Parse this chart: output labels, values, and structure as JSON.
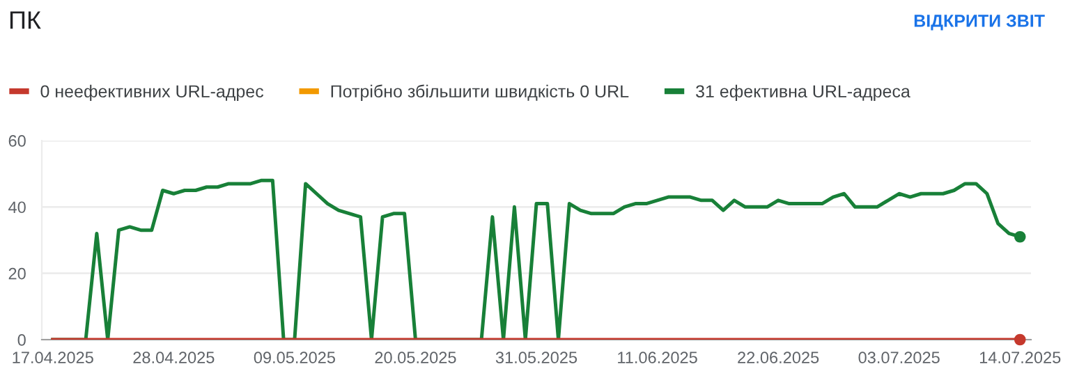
{
  "chart_data": {
    "type": "line",
    "title": "ПК",
    "annotations": [
      "ВІДКРИТИ ЗВІТ"
    ],
    "x": [
      "2025-04-17",
      "2025-04-18",
      "2025-04-19",
      "2025-04-20",
      "2025-04-21",
      "2025-04-22",
      "2025-04-23",
      "2025-04-24",
      "2025-04-25",
      "2025-04-26",
      "2025-04-27",
      "2025-04-28",
      "2025-04-29",
      "2025-04-30",
      "2025-05-01",
      "2025-05-02",
      "2025-05-03",
      "2025-05-04",
      "2025-05-05",
      "2025-05-06",
      "2025-05-07",
      "2025-05-08",
      "2025-05-09",
      "2025-05-10",
      "2025-05-11",
      "2025-05-12",
      "2025-05-13",
      "2025-05-14",
      "2025-05-15",
      "2025-05-16",
      "2025-05-17",
      "2025-05-18",
      "2025-05-19",
      "2025-05-20",
      "2025-05-21",
      "2025-05-22",
      "2025-05-23",
      "2025-05-24",
      "2025-05-25",
      "2025-05-26",
      "2025-05-27",
      "2025-05-28",
      "2025-05-29",
      "2025-05-30",
      "2025-05-31",
      "2025-06-01",
      "2025-06-02",
      "2025-06-03",
      "2025-06-04",
      "2025-06-05",
      "2025-06-06",
      "2025-06-07",
      "2025-06-08",
      "2025-06-09",
      "2025-06-10",
      "2025-06-11",
      "2025-06-12",
      "2025-06-13",
      "2025-06-14",
      "2025-06-15",
      "2025-06-16",
      "2025-06-17",
      "2025-06-18",
      "2025-06-19",
      "2025-06-20",
      "2025-06-21",
      "2025-06-22",
      "2025-06-23",
      "2025-06-24",
      "2025-06-25",
      "2025-06-26",
      "2025-06-27",
      "2025-06-28",
      "2025-06-29",
      "2025-06-30",
      "2025-07-01",
      "2025-07-02",
      "2025-07-03",
      "2025-07-04",
      "2025-07-05",
      "2025-07-06",
      "2025-07-07",
      "2025-07-08",
      "2025-07-09",
      "2025-07-10",
      "2025-07-11",
      "2025-07-12",
      "2025-07-13",
      "2025-07-14"
    ],
    "series": [
      {
        "name": "0 неефективних URL-адрес",
        "color": "#c5392d",
        "values": [
          0,
          0,
          0,
          0,
          0,
          0,
          0,
          0,
          0,
          0,
          0,
          0,
          0,
          0,
          0,
          0,
          0,
          0,
          0,
          0,
          0,
          0,
          0,
          0,
          0,
          0,
          0,
          0,
          0,
          0,
          0,
          0,
          0,
          0,
          0,
          0,
          0,
          0,
          0,
          0,
          0,
          0,
          0,
          0,
          0,
          0,
          0,
          0,
          0,
          0,
          0,
          0,
          0,
          0,
          0,
          0,
          0,
          0,
          0,
          0,
          0,
          0,
          0,
          0,
          0,
          0,
          0,
          0,
          0,
          0,
          0,
          0,
          0,
          0,
          0,
          0,
          0,
          0,
          0,
          0,
          0,
          0,
          0,
          0,
          0,
          0,
          0,
          0,
          0
        ]
      },
      {
        "name": "Потрібно збільшити швидкість 0 URL",
        "color": "#f29900",
        "values": [
          null,
          null,
          null,
          null,
          null,
          null,
          null,
          null,
          null,
          null,
          null,
          null,
          null,
          null,
          null,
          null,
          null,
          null,
          null,
          null,
          null,
          null,
          null,
          null,
          null,
          null,
          null,
          null,
          null,
          null,
          null,
          null,
          null,
          null,
          null,
          null,
          null,
          null,
          null,
          null,
          null,
          null,
          null,
          null,
          null,
          null,
          null,
          null,
          null,
          null,
          null,
          null,
          null,
          null,
          null,
          null,
          null,
          null,
          null,
          null,
          null,
          null,
          null,
          null,
          null,
          null,
          null,
          null,
          null,
          null,
          null,
          null,
          null,
          null,
          null,
          null,
          null,
          null,
          null,
          null,
          null,
          null,
          null,
          null,
          null,
          null,
          null,
          null,
          null
        ]
      },
      {
        "name": "31 ефективна URL-адреса",
        "color": "#188038",
        "values": [
          0,
          0,
          0,
          0,
          32,
          0,
          33,
          34,
          33,
          33,
          45,
          44,
          45,
          45,
          46,
          46,
          47,
          47,
          47,
          48,
          48,
          0,
          0,
          47,
          44,
          41,
          39,
          38,
          37,
          0,
          37,
          38,
          38,
          0,
          0,
          0,
          0,
          0,
          0,
          0,
          37,
          0,
          40,
          0,
          41,
          41,
          0,
          41,
          39,
          38,
          38,
          38,
          40,
          41,
          41,
          42,
          43,
          43,
          43,
          42,
          42,
          39,
          42,
          40,
          40,
          40,
          42,
          41,
          41,
          41,
          41,
          43,
          44,
          40,
          40,
          40,
          42,
          44,
          43,
          44,
          44,
          44,
          45,
          47,
          47,
          44,
          35,
          32,
          31
        ]
      }
    ],
    "xlim": [
      "2025-04-16",
      "2025-07-15"
    ],
    "xticks": [
      {
        "value": "2025-04-17",
        "label": "17.04.2025"
      },
      {
        "value": "2025-04-28",
        "label": "28.04.2025"
      },
      {
        "value": "2025-05-09",
        "label": "09.05.2025"
      },
      {
        "value": "2025-05-20",
        "label": "20.05.2025"
      },
      {
        "value": "2025-05-31",
        "label": "31.05.2025"
      },
      {
        "value": "2025-06-11",
        "label": "11.06.2025"
      },
      {
        "value": "2025-06-22",
        "label": "22.06.2025"
      },
      {
        "value": "2025-07-03",
        "label": "03.07.2025"
      },
      {
        "value": "2025-07-14",
        "label": "14.07.2025"
      }
    ],
    "ylim": [
      0,
      60
    ],
    "yticks": [
      0,
      20,
      40,
      60
    ],
    "grid": "y",
    "legend": "top left",
    "marker": "none",
    "line_style": "solid"
  }
}
